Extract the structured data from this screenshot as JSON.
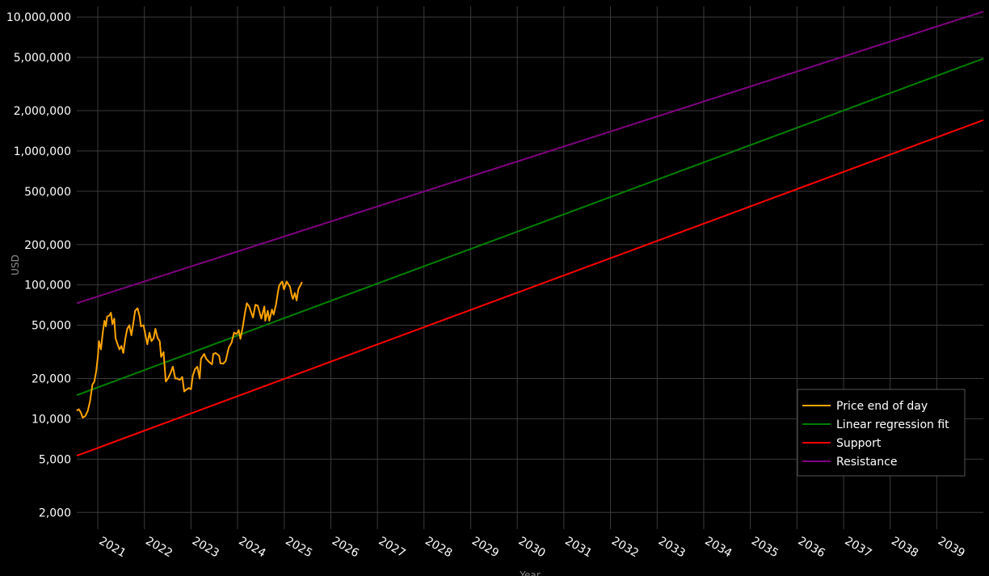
{
  "chart_data": {
    "type": "line",
    "title": "",
    "xlabel": "Year",
    "ylabel": "USD",
    "y_scale": "log",
    "xlim": [
      "2020-07-20",
      "2040-01-01"
    ],
    "ylim": [
      1500,
      12000000
    ],
    "grid": true,
    "legend_position": "bottom-right",
    "y_ticks": [
      {
        "value": 2000,
        "label": "2,000"
      },
      {
        "value": 5000,
        "label": "5,000"
      },
      {
        "value": 10000,
        "label": "10,000"
      },
      {
        "value": 20000,
        "label": "20,000"
      },
      {
        "value": 50000,
        "label": "50,000"
      },
      {
        "value": 100000,
        "label": "100,000"
      },
      {
        "value": 200000,
        "label": "200,000"
      },
      {
        "value": 500000,
        "label": "500,000"
      },
      {
        "value": 1000000,
        "label": "1,000,000"
      },
      {
        "value": 2000000,
        "label": "2,000,000"
      },
      {
        "value": 5000000,
        "label": "5,000,000"
      },
      {
        "value": 10000000,
        "label": "10,000,000"
      }
    ],
    "x_ticks": [
      {
        "value": "2021-01-01",
        "label": "2021"
      },
      {
        "value": "2022-01-01",
        "label": "2022"
      },
      {
        "value": "2023-01-01",
        "label": "2023"
      },
      {
        "value": "2024-01-01",
        "label": "2024"
      },
      {
        "value": "2025-01-01",
        "label": "2025"
      },
      {
        "value": "2026-01-01",
        "label": "2026"
      },
      {
        "value": "2027-01-01",
        "label": "2027"
      },
      {
        "value": "2028-01-01",
        "label": "2028"
      },
      {
        "value": "2029-01-01",
        "label": "2029"
      },
      {
        "value": "2030-01-01",
        "label": "2030"
      },
      {
        "value": "2031-01-01",
        "label": "2031"
      },
      {
        "value": "2032-01-01",
        "label": "2032"
      },
      {
        "value": "2033-01-01",
        "label": "2033"
      },
      {
        "value": "2034-01-01",
        "label": "2034"
      },
      {
        "value": "2035-01-01",
        "label": "2035"
      },
      {
        "value": "2036-01-01",
        "label": "2036"
      },
      {
        "value": "2037-01-01",
        "label": "2037"
      },
      {
        "value": "2038-01-01",
        "label": "2038"
      },
      {
        "value": "2039-01-01",
        "label": "2039"
      }
    ],
    "series": [
      {
        "name": "Price end of day",
        "color": "#ffa500",
        "points": [
          [
            "2020-07-20",
            11500
          ],
          [
            "2020-08-05",
            11800
          ],
          [
            "2020-08-20",
            11200
          ],
          [
            "2020-09-05",
            10200
          ],
          [
            "2020-09-25",
            10500
          ],
          [
            "2020-10-15",
            11500
          ],
          [
            "2020-11-01",
            13500
          ],
          [
            "2020-11-20",
            18000
          ],
          [
            "2020-12-05",
            19000
          ],
          [
            "2020-12-20",
            23000
          ],
          [
            "2021-01-01",
            29000
          ],
          [
            "2021-01-10",
            38000
          ],
          [
            "2021-01-25",
            33000
          ],
          [
            "2021-02-10",
            45000
          ],
          [
            "2021-02-22",
            54000
          ],
          [
            "2021-03-05",
            49000
          ],
          [
            "2021-03-15",
            58000
          ],
          [
            "2021-04-01",
            59000
          ],
          [
            "2021-04-14",
            62000
          ],
          [
            "2021-04-25",
            51000
          ],
          [
            "2021-05-10",
            56000
          ],
          [
            "2021-05-20",
            40000
          ],
          [
            "2021-06-05",
            36000
          ],
          [
            "2021-06-20",
            33000
          ],
          [
            "2021-07-05",
            35000
          ],
          [
            "2021-07-20",
            31000
          ],
          [
            "2021-08-05",
            40000
          ],
          [
            "2021-08-20",
            47000
          ],
          [
            "2021-09-05",
            50000
          ],
          [
            "2021-09-21",
            42000
          ],
          [
            "2021-10-05",
            51000
          ],
          [
            "2021-10-20",
            64000
          ],
          [
            "2021-11-08",
            67000
          ],
          [
            "2021-11-25",
            58000
          ],
          [
            "2021-12-05",
            49000
          ],
          [
            "2021-12-25",
            50000
          ],
          [
            "2022-01-10",
            42000
          ],
          [
            "2022-01-24",
            36000
          ],
          [
            "2022-02-10",
            44000
          ],
          [
            "2022-02-25",
            38000
          ],
          [
            "2022-03-15",
            40000
          ],
          [
            "2022-03-28",
            47000
          ],
          [
            "2022-04-15",
            40000
          ],
          [
            "2022-05-01",
            38000
          ],
          [
            "2022-05-12",
            29000
          ],
          [
            "2022-05-31",
            31500
          ],
          [
            "2022-06-18",
            19000
          ],
          [
            "2022-07-05",
            20000
          ],
          [
            "2022-07-25",
            22000
          ],
          [
            "2022-08-12",
            24500
          ],
          [
            "2022-08-31",
            20000
          ],
          [
            "2022-09-15",
            20000
          ],
          [
            "2022-10-05",
            19500
          ],
          [
            "2022-10-25",
            20500
          ],
          [
            "2022-11-09",
            16000
          ],
          [
            "2022-11-25",
            16500
          ],
          [
            "2022-12-15",
            17000
          ],
          [
            "2023-01-01",
            16600
          ],
          [
            "2023-01-15",
            21000
          ],
          [
            "2023-02-01",
            23500
          ],
          [
            "2023-02-20",
            24500
          ],
          [
            "2023-03-10",
            20000
          ],
          [
            "2023-03-20",
            28000
          ],
          [
            "2023-04-14",
            30500
          ],
          [
            "2023-05-01",
            28000
          ],
          [
            "2023-05-25",
            26500
          ],
          [
            "2023-06-15",
            25500
          ],
          [
            "2023-06-25",
            30500
          ],
          [
            "2023-07-14",
            31000
          ],
          [
            "2023-08-10",
            29500
          ],
          [
            "2023-08-20",
            26000
          ],
          [
            "2023-09-10",
            25800
          ],
          [
            "2023-09-30",
            27000
          ],
          [
            "2023-10-24",
            34000
          ],
          [
            "2023-11-15",
            37000
          ],
          [
            "2023-12-05",
            44000
          ],
          [
            "2023-12-25",
            43000
          ],
          [
            "2024-01-10",
            46000
          ],
          [
            "2024-01-23",
            39500
          ],
          [
            "2024-02-10",
            48000
          ],
          [
            "2024-02-28",
            62000
          ],
          [
            "2024-03-14",
            73000
          ],
          [
            "2024-04-01",
            69000
          ],
          [
            "2024-04-15",
            63000
          ],
          [
            "2024-05-01",
            57000
          ],
          [
            "2024-05-20",
            71000
          ],
          [
            "2024-06-07",
            70000
          ],
          [
            "2024-07-05",
            56000
          ],
          [
            "2024-07-29",
            69000
          ],
          [
            "2024-08-05",
            54000
          ],
          [
            "2024-08-25",
            64000
          ],
          [
            "2024-09-06",
            54000
          ],
          [
            "2024-09-27",
            65500
          ],
          [
            "2024-10-10",
            60000
          ],
          [
            "2024-10-29",
            72000
          ],
          [
            "2024-11-12",
            88000
          ],
          [
            "2024-11-22",
            98500
          ],
          [
            "2024-12-05",
            103000
          ],
          [
            "2024-12-17",
            106000
          ],
          [
            "2024-12-30",
            92500
          ],
          [
            "2025-01-20",
            106000
          ],
          [
            "2025-01-31",
            102000
          ],
          [
            "2025-02-15",
            97000
          ],
          [
            "2025-02-28",
            84000
          ],
          [
            "2025-03-10",
            78500
          ],
          [
            "2025-03-25",
            87000
          ],
          [
            "2025-04-08",
            76500
          ],
          [
            "2025-04-22",
            93000
          ],
          [
            "2025-05-08",
            99500
          ],
          [
            "2025-05-20",
            105000
          ]
        ]
      },
      {
        "name": "Linear regression fit",
        "color": "#008000",
        "points": [
          [
            "2020-07-20",
            15000
          ],
          [
            "2040-01-01",
            4900000
          ]
        ]
      },
      {
        "name": "Support",
        "color": "#ff0000",
        "points": [
          [
            "2020-07-20",
            5300
          ],
          [
            "2040-01-01",
            1700000
          ]
        ]
      },
      {
        "name": "Resistance",
        "color": "#800080",
        "points": [
          [
            "2020-07-20",
            73000
          ],
          [
            "2040-01-01",
            11000000
          ]
        ]
      }
    ]
  }
}
